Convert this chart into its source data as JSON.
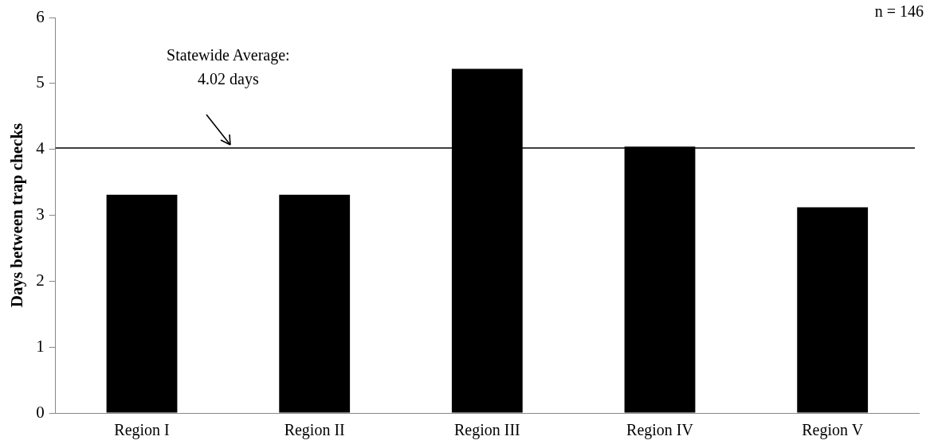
{
  "chart_data": {
    "type": "bar",
    "ylabel": "Days between trap checks",
    "categories": [
      "Region I",
      "Region II",
      "Region III",
      "Region IV",
      "Region V"
    ],
    "values": [
      3.31,
      3.31,
      5.22,
      4.04,
      3.12
    ],
    "color": "#000000",
    "ylim": [
      0,
      6
    ],
    "yticks": [
      0,
      1,
      2,
      3,
      4,
      5,
      6
    ],
    "grid": false,
    "legend": false,
    "ref_lines": [
      {
        "axis": "y",
        "value": 4.02,
        "label": "Statewide Average:\n4.02 days",
        "color": "#000000",
        "line_style": "solid"
      }
    ],
    "annotations": [
      "n = 146"
    ]
  }
}
